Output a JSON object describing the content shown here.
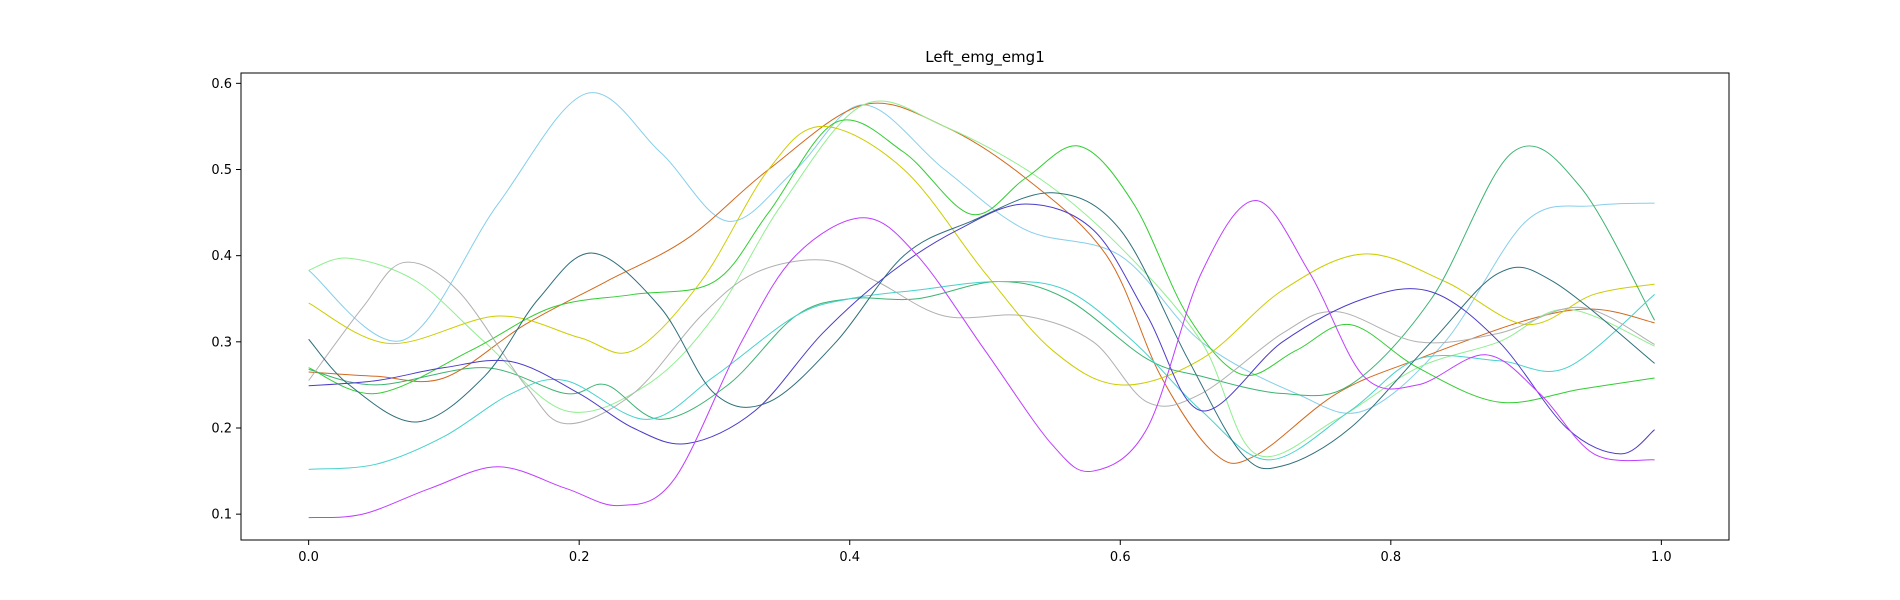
{
  "chart_data": {
    "type": "line",
    "title": "Left_emg_emg1",
    "xlabel": "",
    "ylabel": "",
    "xlim": [
      -0.05,
      1.05
    ],
    "ylim": [
      0.07,
      0.612
    ],
    "xticks": [
      0.0,
      0.2,
      0.4,
      0.6,
      0.8,
      1.0
    ],
    "xtick_labels": [
      "0.0",
      "0.2",
      "0.4",
      "0.6",
      "0.8",
      "1.0"
    ],
    "yticks": [
      0.1,
      0.2,
      0.3,
      0.4,
      0.5,
      0.6
    ],
    "ytick_labels": [
      "0.1",
      "0.2",
      "0.3",
      "0.4",
      "0.5",
      "0.6"
    ],
    "grid": false,
    "legend": false,
    "series": [
      {
        "color": "#87ceeb",
        "points": [
          [
            0.0,
            0.383
          ],
          [
            0.07,
            0.302
          ],
          [
            0.14,
            0.46
          ],
          [
            0.205,
            0.588
          ],
          [
            0.26,
            0.52
          ],
          [
            0.31,
            0.44
          ],
          [
            0.36,
            0.5
          ],
          [
            0.41,
            0.575
          ],
          [
            0.47,
            0.5
          ],
          [
            0.53,
            0.43
          ],
          [
            0.6,
            0.4
          ],
          [
            0.66,
            0.3
          ],
          [
            0.73,
            0.24
          ],
          [
            0.78,
            0.22
          ],
          [
            0.84,
            0.3
          ],
          [
            0.9,
            0.44
          ],
          [
            0.95,
            0.458
          ],
          [
            0.995,
            0.461
          ]
        ]
      },
      {
        "color": "#d2691e",
        "points": [
          [
            0.0,
            0.265
          ],
          [
            0.05,
            0.26
          ],
          [
            0.1,
            0.258
          ],
          [
            0.16,
            0.32
          ],
          [
            0.22,
            0.37
          ],
          [
            0.28,
            0.42
          ],
          [
            0.34,
            0.5
          ],
          [
            0.41,
            0.575
          ],
          [
            0.47,
            0.55
          ],
          [
            0.53,
            0.49
          ],
          [
            0.59,
            0.4
          ],
          [
            0.63,
            0.26
          ],
          [
            0.67,
            0.17
          ],
          [
            0.7,
            0.168
          ],
          [
            0.76,
            0.24
          ],
          [
            0.82,
            0.28
          ],
          [
            0.9,
            0.325
          ],
          [
            0.95,
            0.338
          ],
          [
            0.995,
            0.322
          ]
        ]
      },
      {
        "color": "#90ee90",
        "points": [
          [
            0.0,
            0.383
          ],
          [
            0.03,
            0.397
          ],
          [
            0.08,
            0.37
          ],
          [
            0.13,
            0.3
          ],
          [
            0.19,
            0.22
          ],
          [
            0.25,
            0.25
          ],
          [
            0.3,
            0.33
          ],
          [
            0.35,
            0.46
          ],
          [
            0.41,
            0.575
          ],
          [
            0.47,
            0.55
          ],
          [
            0.54,
            0.49
          ],
          [
            0.6,
            0.41
          ],
          [
            0.66,
            0.3
          ],
          [
            0.7,
            0.17
          ],
          [
            0.76,
            0.21
          ],
          [
            0.82,
            0.27
          ],
          [
            0.88,
            0.3
          ],
          [
            0.93,
            0.338
          ],
          [
            0.995,
            0.295
          ]
        ]
      },
      {
        "color": "#32cd32",
        "points": [
          [
            0.0,
            0.27
          ],
          [
            0.05,
            0.24
          ],
          [
            0.12,
            0.29
          ],
          [
            0.18,
            0.34
          ],
          [
            0.24,
            0.355
          ],
          [
            0.3,
            0.37
          ],
          [
            0.34,
            0.45
          ],
          [
            0.39,
            0.555
          ],
          [
            0.44,
            0.52
          ],
          [
            0.49,
            0.448
          ],
          [
            0.53,
            0.49
          ],
          [
            0.57,
            0.527
          ],
          [
            0.61,
            0.46
          ],
          [
            0.65,
            0.33
          ],
          [
            0.69,
            0.262
          ],
          [
            0.73,
            0.29
          ],
          [
            0.77,
            0.32
          ],
          [
            0.82,
            0.27
          ],
          [
            0.88,
            0.23
          ],
          [
            0.94,
            0.245
          ],
          [
            0.995,
            0.258
          ]
        ]
      },
      {
        "color": "#cdcd00",
        "points": [
          [
            0.0,
            0.345
          ],
          [
            0.06,
            0.298
          ],
          [
            0.14,
            0.33
          ],
          [
            0.2,
            0.305
          ],
          [
            0.24,
            0.29
          ],
          [
            0.29,
            0.37
          ],
          [
            0.34,
            0.5
          ],
          [
            0.38,
            0.55
          ],
          [
            0.44,
            0.5
          ],
          [
            0.5,
            0.38
          ],
          [
            0.55,
            0.29
          ],
          [
            0.6,
            0.25
          ],
          [
            0.66,
            0.28
          ],
          [
            0.72,
            0.36
          ],
          [
            0.78,
            0.402
          ],
          [
            0.84,
            0.37
          ],
          [
            0.9,
            0.32
          ],
          [
            0.95,
            0.355
          ],
          [
            0.995,
            0.367
          ]
        ]
      },
      {
        "color": "#3cb371",
        "points": [
          [
            0.0,
            0.268
          ],
          [
            0.05,
            0.25
          ],
          [
            0.13,
            0.27
          ],
          [
            0.19,
            0.24
          ],
          [
            0.22,
            0.25
          ],
          [
            0.26,
            0.21
          ],
          [
            0.31,
            0.25
          ],
          [
            0.36,
            0.33
          ],
          [
            0.4,
            0.35
          ],
          [
            0.45,
            0.35
          ],
          [
            0.51,
            0.37
          ],
          [
            0.56,
            0.35
          ],
          [
            0.62,
            0.28
          ],
          [
            0.66,
            0.26
          ],
          [
            0.72,
            0.24
          ],
          [
            0.77,
            0.25
          ],
          [
            0.83,
            0.35
          ],
          [
            0.89,
            0.52
          ],
          [
            0.94,
            0.48
          ],
          [
            0.995,
            0.325
          ]
        ]
      },
      {
        "color": "#48d1cc",
        "points": [
          [
            0.0,
            0.152
          ],
          [
            0.05,
            0.158
          ],
          [
            0.1,
            0.19
          ],
          [
            0.15,
            0.24
          ],
          [
            0.19,
            0.255
          ],
          [
            0.25,
            0.21
          ],
          [
            0.3,
            0.26
          ],
          [
            0.36,
            0.33
          ],
          [
            0.4,
            0.35
          ],
          [
            0.45,
            0.36
          ],
          [
            0.51,
            0.37
          ],
          [
            0.56,
            0.36
          ],
          [
            0.61,
            0.3
          ],
          [
            0.66,
            0.22
          ],
          [
            0.71,
            0.163
          ],
          [
            0.77,
            0.22
          ],
          [
            0.82,
            0.28
          ],
          [
            0.88,
            0.278
          ],
          [
            0.93,
            0.27
          ],
          [
            0.995,
            0.355
          ]
        ]
      },
      {
        "color": "#b0b0b0",
        "points": [
          [
            0.0,
            0.255
          ],
          [
            0.04,
            0.34
          ],
          [
            0.07,
            0.392
          ],
          [
            0.11,
            0.36
          ],
          [
            0.16,
            0.25
          ],
          [
            0.19,
            0.205
          ],
          [
            0.24,
            0.24
          ],
          [
            0.29,
            0.33
          ],
          [
            0.33,
            0.38
          ],
          [
            0.38,
            0.395
          ],
          [
            0.42,
            0.37
          ],
          [
            0.47,
            0.33
          ],
          [
            0.53,
            0.33
          ],
          [
            0.58,
            0.3
          ],
          [
            0.62,
            0.23
          ],
          [
            0.66,
            0.24
          ],
          [
            0.72,
            0.31
          ],
          [
            0.76,
            0.335
          ],
          [
            0.82,
            0.3
          ],
          [
            0.88,
            0.31
          ],
          [
            0.94,
            0.34
          ],
          [
            0.995,
            0.297
          ]
        ]
      },
      {
        "color": "#2f6f7a",
        "points": [
          [
            0.0,
            0.303
          ],
          [
            0.03,
            0.25
          ],
          [
            0.08,
            0.207
          ],
          [
            0.13,
            0.26
          ],
          [
            0.17,
            0.35
          ],
          [
            0.21,
            0.403
          ],
          [
            0.26,
            0.34
          ],
          [
            0.3,
            0.24
          ],
          [
            0.34,
            0.23
          ],
          [
            0.39,
            0.3
          ],
          [
            0.44,
            0.4
          ],
          [
            0.49,
            0.44
          ],
          [
            0.55,
            0.473
          ],
          [
            0.6,
            0.43
          ],
          [
            0.65,
            0.28
          ],
          [
            0.69,
            0.17
          ],
          [
            0.72,
            0.156
          ],
          [
            0.77,
            0.2
          ],
          [
            0.83,
            0.3
          ],
          [
            0.88,
            0.38
          ],
          [
            0.92,
            0.37
          ],
          [
            0.995,
            0.275
          ]
        ]
      },
      {
        "color": "#4b3cc8",
        "points": [
          [
            0.0,
            0.249
          ],
          [
            0.05,
            0.255
          ],
          [
            0.1,
            0.27
          ],
          [
            0.15,
            0.277
          ],
          [
            0.2,
            0.24
          ],
          [
            0.24,
            0.2
          ],
          [
            0.28,
            0.182
          ],
          [
            0.33,
            0.22
          ],
          [
            0.38,
            0.31
          ],
          [
            0.43,
            0.38
          ],
          [
            0.48,
            0.43
          ],
          [
            0.53,
            0.46
          ],
          [
            0.58,
            0.43
          ],
          [
            0.62,
            0.33
          ],
          [
            0.66,
            0.22
          ],
          [
            0.72,
            0.3
          ],
          [
            0.78,
            0.35
          ],
          [
            0.83,
            0.358
          ],
          [
            0.88,
            0.3
          ],
          [
            0.93,
            0.2
          ],
          [
            0.97,
            0.17
          ],
          [
            0.995,
            0.198
          ]
        ]
      },
      {
        "color": "#bf3eff",
        "points": [
          [
            0.0,
            0.096
          ],
          [
            0.04,
            0.1
          ],
          [
            0.09,
            0.13
          ],
          [
            0.14,
            0.155
          ],
          [
            0.19,
            0.13
          ],
          [
            0.23,
            0.11
          ],
          [
            0.27,
            0.14
          ],
          [
            0.32,
            0.3
          ],
          [
            0.36,
            0.4
          ],
          [
            0.41,
            0.444
          ],
          [
            0.45,
            0.4
          ],
          [
            0.5,
            0.29
          ],
          [
            0.55,
            0.18
          ],
          [
            0.58,
            0.15
          ],
          [
            0.62,
            0.2
          ],
          [
            0.66,
            0.38
          ],
          [
            0.7,
            0.464
          ],
          [
            0.74,
            0.38
          ],
          [
            0.78,
            0.26
          ],
          [
            0.82,
            0.25
          ],
          [
            0.87,
            0.285
          ],
          [
            0.91,
            0.24
          ],
          [
            0.95,
            0.17
          ],
          [
            0.995,
            0.163
          ]
        ]
      }
    ]
  }
}
